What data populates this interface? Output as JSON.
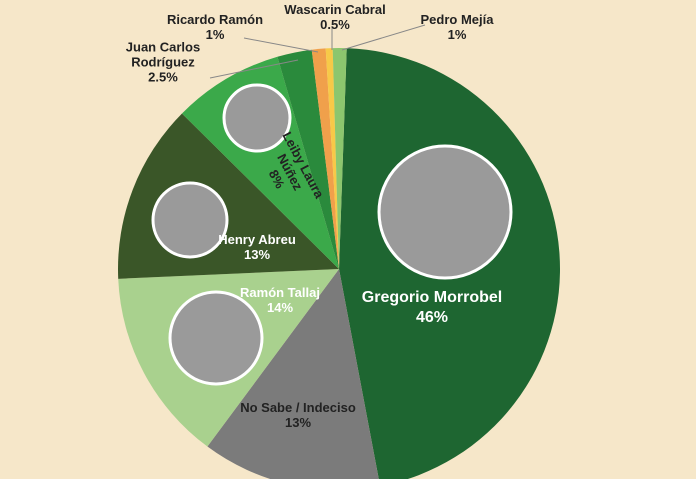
{
  "chart_data": {
    "type": "pie",
    "categories": [
      "Gregorio Morrobel",
      "No Sabe / Indeciso",
      "Ramón Tallaj",
      "Henry Abreu",
      "Leiby Laura Núñez",
      "Juan Carlos Rodríguez",
      "Ricardo Ramón",
      "Wascarin Cabral",
      "Pedro Mejía"
    ],
    "values": [
      46,
      13,
      14,
      13,
      8,
      2.5,
      1,
      0.5,
      1
    ],
    "value_labels": [
      "46%",
      "13%",
      "14%",
      "13%",
      "8%",
      "2.5%",
      "1%",
      "0.5%",
      "1%"
    ],
    "colors": [
      "#1e6631",
      "#7b7b7b",
      "#a9d18e",
      "#3a5628",
      "#3ba94a",
      "#2a8a3c",
      "#f0a04b",
      "#f7c948",
      "#8cc66e"
    ]
  }
}
